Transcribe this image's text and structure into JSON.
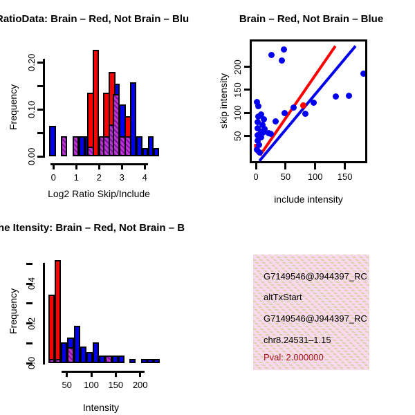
{
  "colors": {
    "red": "#ff0000",
    "blue": "#0000ee",
    "purple_base": "#bc35cf",
    "purple_stripe": "#7d0fa8",
    "pval_text": "#a51220",
    "info_box_pink": "#f9d9ee",
    "info_box_hatch": "#d8d1aa"
  },
  "panels": {
    "ratio_hist": {
      "title": "RatioData: Brain – Red, Not Brain – Blu",
      "xlabel": "Log2 Ratio Skip/Include",
      "ylabel": "Frequency"
    },
    "scatter": {
      "title": "Brain – Red, Not Brain – Blue",
      "xlabel": "include intensity",
      "ylabel": "skip intensity"
    },
    "intensity_hist": {
      "title": "ne Itensity: Brain – Red, Not Brain – B",
      "xlabel": "Intensity",
      "ylabel": "Frequency"
    },
    "info_box": {
      "lines": [
        "G7149546@J944397_RC",
        "altTxStart",
        "G7149546@J944397_RC",
        "chr8.24531–1.15"
      ],
      "pval_line": "Pval: 2.000000"
    }
  },
  "chart_data": [
    {
      "id": "ratio_hist",
      "type": "bar",
      "title": "RatioData: Brain – Red, Not Brain – Blu",
      "xlabel": "Log2 Ratio Skip/Include",
      "ylabel": "Frequency",
      "xlim": [
        -0.3,
        4.7
      ],
      "ylim": [
        0,
        0.23
      ],
      "xtick_values": [
        0,
        1,
        2,
        3,
        4
      ],
      "xtick_labels": [
        "0",
        "1",
        "2",
        "3",
        "4"
      ],
      "ytick_values": [
        0,
        0.05,
        0.1,
        0.15,
        0.2
      ],
      "ytick_labels": [
        "0.00",
        "",
        "0.10",
        "",
        "0.20"
      ],
      "series_note": "bars as [x_left, width, height]; purple = red/blue overlap (hatched)",
      "bars_blue": [
        [
          -0.19,
          0.29,
          0.065
        ],
        [
          1.12,
          0.27,
          0.043
        ],
        [
          1.39,
          0.28,
          0.043
        ],
        [
          2.61,
          0.28,
          0.155
        ],
        [
          2.88,
          0.3,
          0.11
        ],
        [
          3.36,
          0.28,
          0.157
        ],
        [
          3.64,
          0.26,
          0.043
        ],
        [
          3.9,
          0.24,
          0.017
        ],
        [
          4.14,
          0.24,
          0.043
        ],
        [
          4.38,
          0.25,
          0.017
        ]
      ],
      "bars_red": [
        [
          1.47,
          0.3,
          0.136
        ],
        [
          1.71,
          0.29,
          0.226
        ],
        [
          2.18,
          0.3,
          0.136
        ],
        [
          2.41,
          0.3,
          0.179
        ],
        [
          3.11,
          0.31,
          0.086
        ]
      ],
      "bars_purple": [
        [
          0.31,
          0.29,
          0.043
        ],
        [
          0.84,
          0.28,
          0.043
        ],
        [
          1.47,
          0.3,
          0.02
        ],
        [
          2.0,
          0.28,
          0.043
        ],
        [
          2.18,
          0.3,
          0.043
        ],
        [
          2.41,
          0.3,
          0.067
        ],
        [
          2.61,
          0.28,
          0.132
        ],
        [
          2.88,
          0.3,
          0.043
        ],
        [
          3.11,
          0.31,
          0.043
        ]
      ]
    },
    {
      "id": "scatter",
      "type": "scatter",
      "title": "Brain – Red, Not Brain – Blue",
      "xlabel": "include intensity",
      "ylabel": "skip intensity",
      "xlim": [
        -7,
        185
      ],
      "ylim": [
        -5,
        255
      ],
      "xtick_values": [
        0,
        50,
        100,
        150
      ],
      "xtick_labels": [
        "0",
        "50",
        "100",
        "150"
      ],
      "ytick_values": [
        50,
        100,
        150,
        200
      ],
      "ytick_labels": [
        "50",
        "100",
        "150",
        "200"
      ],
      "points_blue": [
        [
          47,
          238
        ],
        [
          26,
          226
        ],
        [
          44,
          213
        ],
        [
          181,
          185
        ],
        [
          157,
          138
        ],
        [
          135,
          136
        ],
        [
          97,
          123
        ],
        [
          83,
          98
        ],
        [
          63,
          112
        ],
        [
          48,
          100
        ],
        [
          1.5,
          124
        ],
        [
          3.5,
          115
        ],
        [
          9,
          97
        ],
        [
          3.5,
          92
        ],
        [
          13,
          87
        ],
        [
          33,
          82
        ],
        [
          3,
          80
        ],
        [
          11,
          75
        ],
        [
          12,
          58
        ],
        [
          3,
          67
        ],
        [
          15,
          65
        ],
        [
          9,
          60
        ],
        [
          21,
          57
        ],
        [
          25,
          55
        ],
        [
          3,
          52
        ],
        [
          9,
          47
        ],
        [
          3,
          40
        ],
        [
          5,
          31
        ],
        [
          2,
          21
        ],
        [
          6,
          14
        ]
      ],
      "points_red": [
        [
          80,
          116
        ]
      ],
      "red_line": {
        "hook_start": [
          -0.5,
          33
        ],
        "start": [
          8,
          10
        ],
        "end": [
          134,
          245
        ]
      },
      "blue_line": {
        "start": [
          6,
          -4
        ],
        "end": [
          168,
          245
        ]
      }
    },
    {
      "id": "intensity_hist",
      "type": "bar",
      "title": "ne Itensity: Brain – Red, Not Brain – B",
      "xlabel": "Intensity",
      "ylabel": "Frequency",
      "xlim": [
        10,
        240
      ],
      "ylim": [
        0,
        0.53
      ],
      "xtick_values": [
        50,
        100,
        150,
        200
      ],
      "xtick_labels": [
        "50",
        "100",
        "150",
        "200"
      ],
      "ytick_values": [
        0,
        0.1,
        0.2,
        0.3,
        0.4,
        0.5
      ],
      "ytick_labels": [
        "0.0",
        "",
        "0.2",
        "",
        "0.4",
        ""
      ],
      "series_note": "bars as [x_left, width, height]; purple = red/blue overlap (hatched)",
      "bars_red": [
        [
          12.3,
          12.7,
          0.345
        ],
        [
          25.0,
          13.2,
          0.52
        ]
      ],
      "bars_blue": [
        [
          38.2,
          12.7,
          0.103
        ],
        [
          50.9,
          13.3,
          0.128
        ],
        [
          64.2,
          12.7,
          0.19
        ],
        [
          76.9,
          13.2,
          0.085
        ],
        [
          90.1,
          12.7,
          0.055
        ],
        [
          102.8,
          13.2,
          0.103
        ],
        [
          116.0,
          12.7,
          0.04
        ],
        [
          142.0,
          12.7,
          0.04
        ],
        [
          154.7,
          13.2,
          0.04
        ],
        [
          177.3,
          12.7,
          0.02
        ],
        [
          201.8,
          12.3,
          0.02
        ],
        [
          214.1,
          12.7,
          0.02
        ],
        [
          226.8,
          12.7,
          0.02
        ]
      ],
      "bars_purple": [
        [
          12.3,
          12.7,
          0.02
        ],
        [
          25.0,
          13.2,
          0.02
        ],
        [
          50.9,
          13.3,
          0.08
        ],
        [
          128.7,
          13.3,
          0.04
        ]
      ]
    }
  ]
}
